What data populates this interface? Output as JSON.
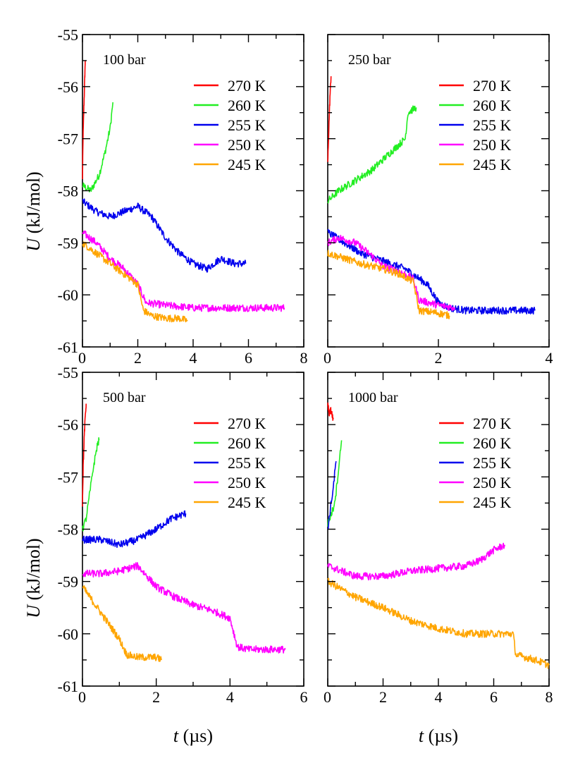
{
  "figure": {
    "ylabel_symbol": "U",
    "ylabel_unit": " (kJ/mol)",
    "xlabel_symbol": "t",
    "xlabel_unit": " (µs)"
  },
  "colors": {
    "270 K": "#ff0000",
    "260 K": "#22ee22",
    "255 K": "#0000ee",
    "250 K": "#ff00ff",
    "245 K": "#ffa500"
  },
  "chart_data": [
    {
      "type": "line",
      "title": "100 bar",
      "xlabel": "t (µs)",
      "ylabel": "U (kJ/mol)",
      "xlim": [
        0,
        8
      ],
      "ylim": [
        -61,
        -55
      ],
      "xticks": [
        "0",
        "2",
        "4",
        "6",
        "8"
      ],
      "yticks": [
        "-61",
        "-60",
        "-59",
        "-58",
        "-57",
        "-56",
        "-55"
      ],
      "series": [
        {
          "name": "270 K",
          "x": [
            0,
            0.02,
            0.05,
            0.08,
            0.1
          ],
          "y": [
            -57.8,
            -57.0,
            -56.4,
            -55.9,
            -55.5
          ]
        },
        {
          "name": "260 K",
          "x": [
            0,
            0.3,
            0.6,
            0.8,
            1.0,
            1.1
          ],
          "y": [
            -57.9,
            -58.0,
            -57.7,
            -57.3,
            -56.8,
            -56.3
          ]
        },
        {
          "name": "255 K",
          "x": [
            0,
            0.5,
            1.0,
            1.5,
            2.0,
            2.5,
            3.0,
            3.5,
            4.0,
            4.5,
            5.0,
            5.5,
            5.9
          ],
          "y": [
            -58.2,
            -58.4,
            -58.5,
            -58.4,
            -58.3,
            -58.5,
            -58.9,
            -59.2,
            -59.4,
            -59.5,
            -59.3,
            -59.4,
            -59.4
          ]
        },
        {
          "name": "250 K",
          "x": [
            0,
            0.5,
            1.0,
            1.5,
            2.0,
            2.3,
            3.0,
            4.0,
            5.0,
            6.0,
            7.0,
            7.3
          ],
          "y": [
            -58.8,
            -59.0,
            -59.3,
            -59.5,
            -59.8,
            -60.15,
            -60.2,
            -60.25,
            -60.25,
            -60.25,
            -60.25,
            -60.25
          ]
        },
        {
          "name": "245 K",
          "x": [
            0,
            0.5,
            1.0,
            1.5,
            2.0,
            2.2,
            2.5,
            3.0,
            3.5,
            3.8
          ],
          "y": [
            -59.0,
            -59.2,
            -59.4,
            -59.6,
            -59.8,
            -60.3,
            -60.4,
            -60.45,
            -60.45,
            -60.5
          ]
        }
      ]
    },
    {
      "type": "line",
      "title": "250 bar",
      "xlabel": "t (µs)",
      "ylabel": "U (kJ/mol)",
      "xlim": [
        0,
        4
      ],
      "ylim": [
        -61,
        -55
      ],
      "xticks": [
        "0",
        "2",
        "4"
      ],
      "yticks": [
        "-61",
        "-60",
        "-59",
        "-58",
        "-57",
        "-56",
        "-55"
      ],
      "series": [
        {
          "name": "270 K",
          "x": [
            0,
            0.02,
            0.04,
            0.06
          ],
          "y": [
            -57.5,
            -56.8,
            -56.2,
            -55.8
          ]
        },
        {
          "name": "260 K",
          "x": [
            0,
            0.2,
            0.5,
            0.8,
            1.0,
            1.2,
            1.4,
            1.45,
            1.6
          ],
          "y": [
            -58.2,
            -58.0,
            -57.8,
            -57.6,
            -57.4,
            -57.2,
            -57.0,
            -56.5,
            -56.4
          ]
        },
        {
          "name": "255 K",
          "x": [
            0,
            0.3,
            0.6,
            1.0,
            1.4,
            1.8,
            2.0,
            2.2,
            2.5,
            3.0,
            3.5,
            3.75
          ],
          "y": [
            -58.8,
            -59.0,
            -59.2,
            -59.35,
            -59.5,
            -59.8,
            -60.15,
            -60.25,
            -60.3,
            -60.3,
            -60.3,
            -60.3
          ]
        },
        {
          "name": "250 K",
          "x": [
            0,
            0.2,
            0.5,
            0.8,
            1.0,
            1.3,
            1.55,
            1.65,
            2.0,
            2.3
          ],
          "y": [
            -59.0,
            -58.9,
            -59.0,
            -59.25,
            -59.45,
            -59.55,
            -59.7,
            -60.1,
            -60.2,
            -60.25
          ]
        },
        {
          "name": "245 K",
          "x": [
            0,
            0.3,
            0.6,
            1.0,
            1.3,
            1.55,
            1.65,
            2.0,
            2.2
          ],
          "y": [
            -59.2,
            -59.3,
            -59.4,
            -59.5,
            -59.6,
            -59.75,
            -60.3,
            -60.35,
            -60.4
          ]
        }
      ]
    },
    {
      "type": "line",
      "title": "500 bar",
      "xlabel": "t (µs)",
      "ylabel": "U (kJ/mol)",
      "xlim": [
        0,
        6
      ],
      "ylim": [
        -61,
        -55
      ],
      "xticks": [
        "0",
        "2",
        "4",
        "6"
      ],
      "yticks": [
        "-61",
        "-60",
        "-59",
        "-58",
        "-57",
        "-56",
        "-55"
      ],
      "series": [
        {
          "name": "270 K",
          "x": [
            0,
            0.02,
            0.05,
            0.08,
            0.1
          ],
          "y": [
            -57.5,
            -56.8,
            -56.2,
            -55.8,
            -55.6
          ]
        },
        {
          "name": "260 K",
          "x": [
            0,
            0.1,
            0.2,
            0.3,
            0.4,
            0.45
          ],
          "y": [
            -58.0,
            -57.8,
            -57.3,
            -56.8,
            -56.4,
            -56.3
          ]
        },
        {
          "name": "255 K",
          "x": [
            0,
            0.5,
            1.0,
            1.5,
            2.0,
            2.4,
            2.8
          ],
          "y": [
            -58.2,
            -58.2,
            -58.3,
            -58.2,
            -58.0,
            -57.8,
            -57.7
          ]
        },
        {
          "name": "250 K",
          "x": [
            0,
            0.5,
            1.0,
            1.5,
            2.0,
            2.5,
            3.0,
            3.5,
            4.0,
            4.2,
            4.5,
            5.0,
            5.5
          ],
          "y": [
            -58.85,
            -58.85,
            -58.8,
            -58.7,
            -59.1,
            -59.3,
            -59.45,
            -59.55,
            -59.7,
            -60.25,
            -60.3,
            -60.3,
            -60.3
          ]
        },
        {
          "name": "245 K",
          "x": [
            0,
            0.2,
            0.5,
            0.8,
            1.0,
            1.2,
            1.5,
            2.0,
            2.15
          ],
          "y": [
            -59.1,
            -59.3,
            -59.6,
            -59.9,
            -60.1,
            -60.4,
            -60.45,
            -60.45,
            -60.5
          ]
        }
      ]
    },
    {
      "type": "line",
      "title": "1000 bar",
      "xlabel": "t (µs)",
      "ylabel": "U (kJ/mol)",
      "xlim": [
        0,
        8
      ],
      "ylim": [
        -61,
        -55
      ],
      "xticks": [
        "0",
        "2",
        "4",
        "6",
        "8"
      ],
      "yticks": [
        "-61",
        "-60",
        "-59",
        "-58",
        "-57",
        "-56",
        "-55"
      ],
      "series": [
        {
          "name": "270 K",
          "x": [
            0,
            0.05,
            0.1,
            0.15,
            0.2
          ],
          "y": [
            -55.6,
            -55.8,
            -55.7,
            -55.8,
            -55.9
          ]
        },
        {
          "name": "260 K",
          "x": [
            0,
            0.2,
            0.3,
            0.4,
            0.5
          ],
          "y": [
            -57.9,
            -57.6,
            -57.3,
            -56.8,
            -56.3
          ]
        },
        {
          "name": "255 K",
          "x": [
            0,
            0.1,
            0.2,
            0.3
          ],
          "y": [
            -58.0,
            -57.6,
            -57.2,
            -56.7
          ]
        },
        {
          "name": "250 K",
          "x": [
            0,
            0.5,
            1.0,
            2.0,
            3.0,
            4.0,
            5.0,
            5.5,
            6.0,
            6.4
          ],
          "y": [
            -58.7,
            -58.8,
            -58.9,
            -58.9,
            -58.8,
            -58.75,
            -58.7,
            -58.6,
            -58.4,
            -58.3
          ]
        },
        {
          "name": "245 K",
          "x": [
            0,
            1.0,
            2.0,
            3.0,
            4.0,
            5.0,
            6.0,
            6.7,
            6.8,
            7.5,
            8.0
          ],
          "y": [
            -59.0,
            -59.3,
            -59.5,
            -59.75,
            -59.9,
            -60.0,
            -60.0,
            -60.0,
            -60.4,
            -60.5,
            -60.6
          ]
        }
      ]
    }
  ]
}
